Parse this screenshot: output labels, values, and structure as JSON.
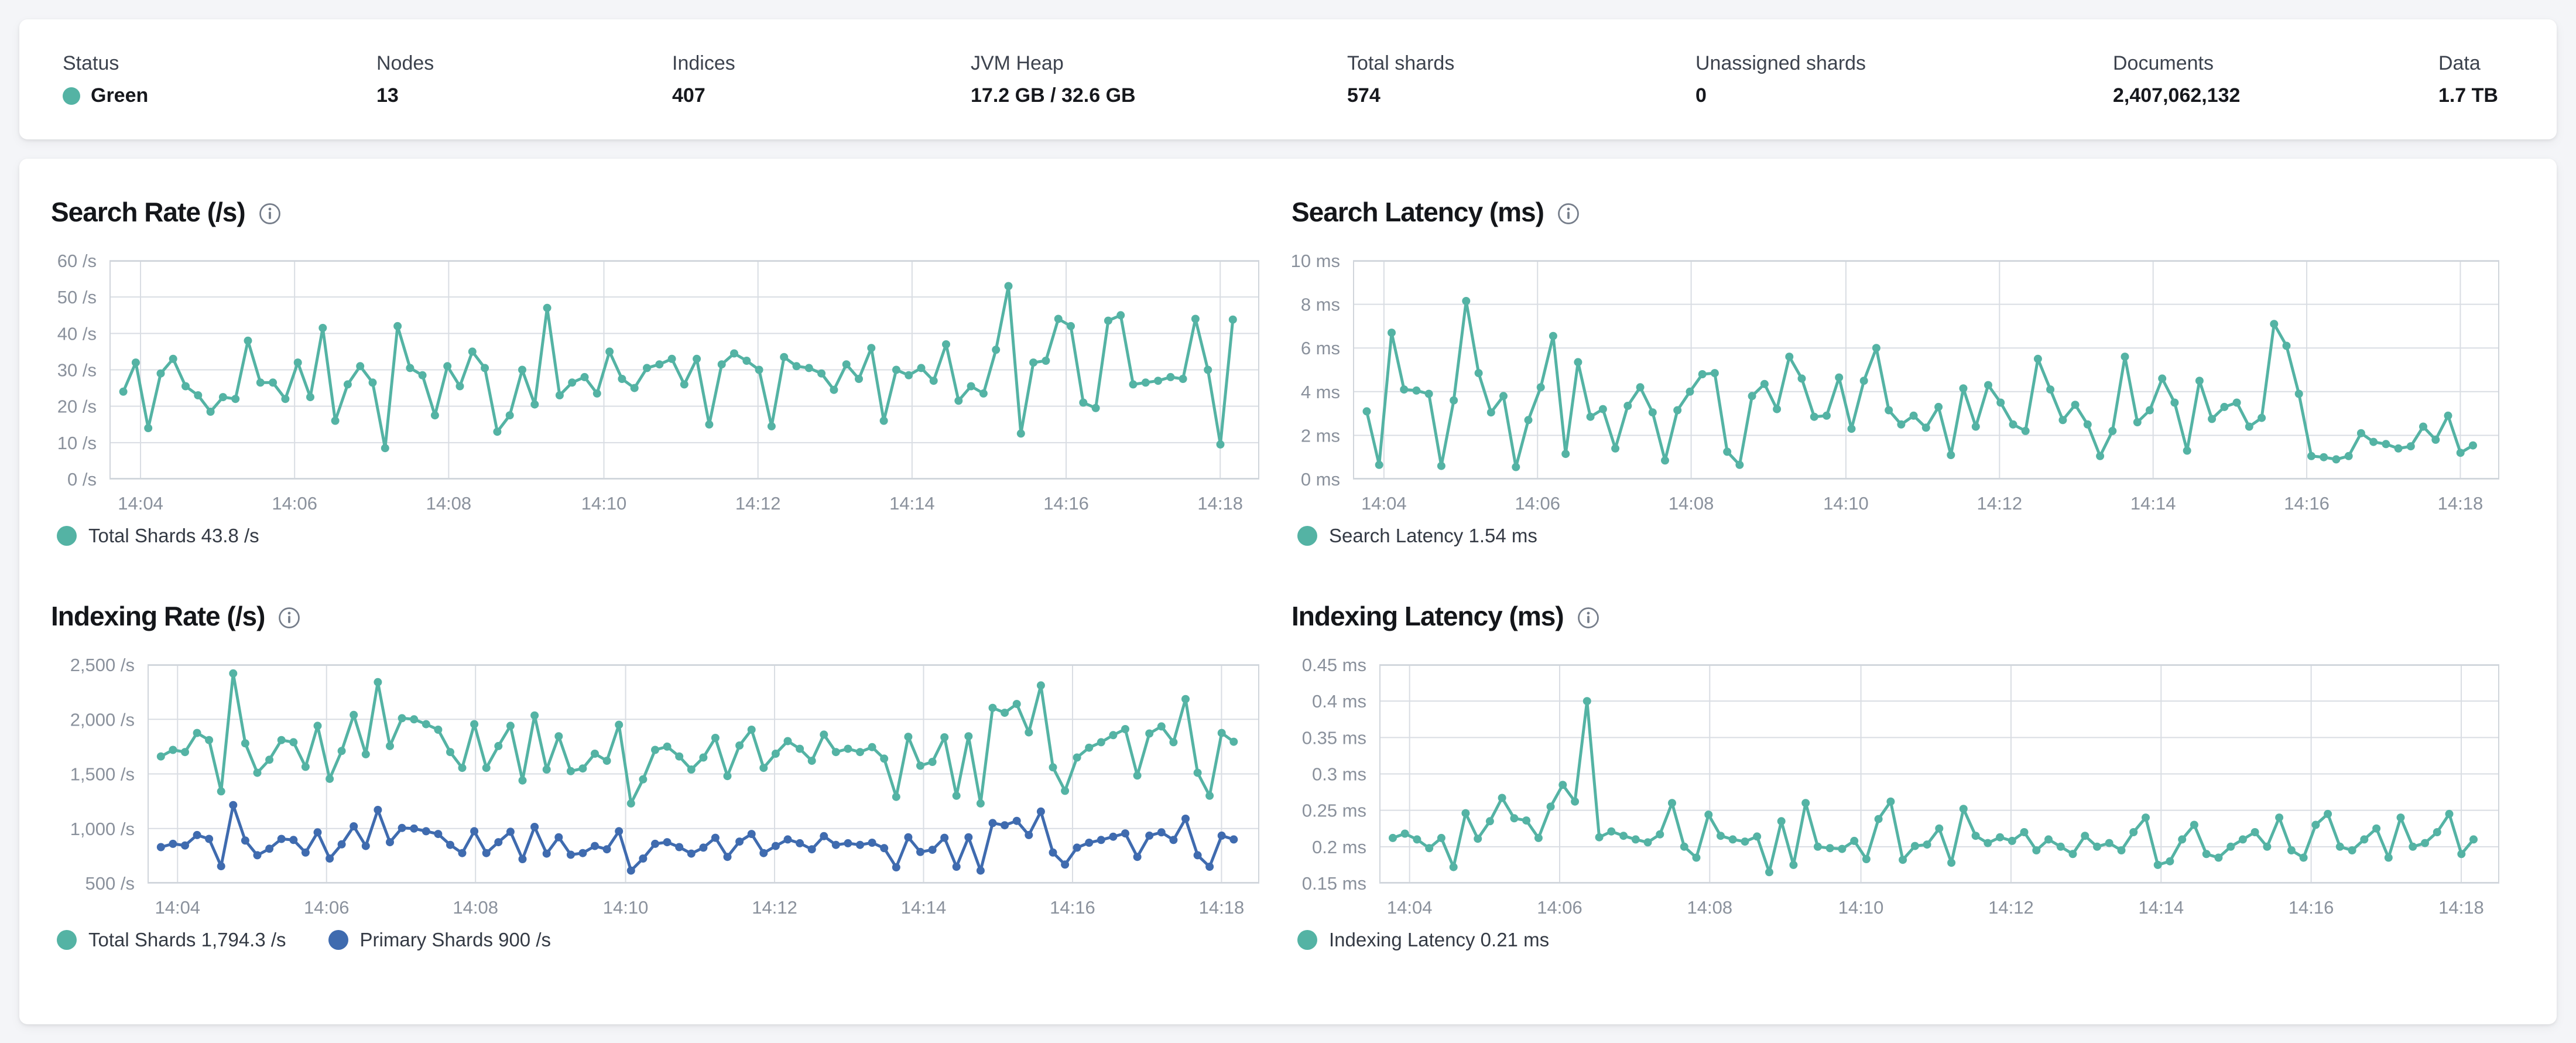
{
  "header": {
    "stats": [
      {
        "label": "Status",
        "value": "Green"
      },
      {
        "label": "Nodes",
        "value": "13"
      },
      {
        "label": "Indices",
        "value": "407"
      },
      {
        "label": "JVM Heap",
        "value": "17.2 GB / 32.6 GB"
      },
      {
        "label": "Total shards",
        "value": "574"
      },
      {
        "label": "Unassigned shards",
        "value": "0"
      },
      {
        "label": "Documents",
        "value": "2,407,062,132"
      },
      {
        "label": "Data",
        "value": "1.7 TB"
      }
    ],
    "status_color": "#54B3A4"
  },
  "colors": {
    "teal": "#54B3A4",
    "blue": "#3F6BAF",
    "grid": "#d9dde3",
    "axis_text": "#8a919c"
  },
  "chart_data": [
    {
      "type": "line",
      "title": "Search Rate (/s)",
      "ylim": [
        0,
        60
      ],
      "yticks": [
        {
          "label": "60 /s",
          "v": 60
        },
        {
          "label": "50 /s",
          "v": 50
        },
        {
          "label": "40 /s",
          "v": 40
        },
        {
          "label": "30 /s",
          "v": 30
        },
        {
          "label": "20 /s",
          "v": 20
        },
        {
          "label": "10 /s",
          "v": 10
        },
        {
          "label": "0 /s",
          "v": 0
        }
      ],
      "xticks": [
        {
          "label": "14:04",
          "f": 0.027
        },
        {
          "label": "14:06",
          "f": 0.161
        },
        {
          "label": "14:08",
          "f": 0.295
        },
        {
          "label": "14:10",
          "f": 0.43
        },
        {
          "label": "14:12",
          "f": 0.564
        },
        {
          "label": "14:14",
          "f": 0.698
        },
        {
          "label": "14:16",
          "f": 0.832
        },
        {
          "label": "14:18",
          "f": 0.966
        }
      ],
      "f_start": 0.012,
      "f_end": 0.977,
      "legend": [
        {
          "label": "Total Shards 43.8 /s",
          "color": "#54B3A4"
        }
      ],
      "series": [
        {
          "name": "Total Shards",
          "color": "#54B3A4",
          "values": [
            24,
            32,
            14,
            29,
            33,
            25.5,
            23,
            18.5,
            22.5,
            22,
            38,
            26.5,
            26.5,
            22,
            32,
            22.5,
            41.5,
            16,
            26,
            31,
            26.5,
            8.5,
            42,
            30.5,
            28.5,
            17.5,
            31,
            25.5,
            35,
            30.5,
            13,
            17.5,
            30,
            20.5,
            47,
            23,
            26.5,
            28,
            23.5,
            35,
            27.5,
            25,
            30.5,
            31.5,
            33,
            26,
            33,
            15,
            31.5,
            34.5,
            32.5,
            30,
            14.5,
            33.5,
            31,
            30.5,
            29,
            24.5,
            31.5,
            27.5,
            36,
            16,
            30,
            28.5,
            30.5,
            27,
            37,
            21.5,
            25.5,
            23.5,
            35.5,
            53,
            12.5,
            32,
            32.5,
            44,
            42,
            21,
            19.5,
            43.5,
            45,
            26,
            26.5,
            27,
            28,
            27.5,
            44,
            30,
            9.5,
            43.8
          ]
        }
      ]
    },
    {
      "type": "line",
      "title": "Search Latency (ms)",
      "ylim": [
        0,
        10
      ],
      "yticks": [
        {
          "label": "10 ms",
          "v": 10
        },
        {
          "label": "8 ms",
          "v": 8
        },
        {
          "label": "6 ms",
          "v": 6
        },
        {
          "label": "4 ms",
          "v": 4
        },
        {
          "label": "2 ms",
          "v": 2
        },
        {
          "label": "0 ms",
          "v": 0
        }
      ],
      "xticks": [
        {
          "label": "14:04",
          "f": 0.027
        },
        {
          "label": "14:06",
          "f": 0.161
        },
        {
          "label": "14:08",
          "f": 0.295
        },
        {
          "label": "14:10",
          "f": 0.43
        },
        {
          "label": "14:12",
          "f": 0.564
        },
        {
          "label": "14:14",
          "f": 0.698
        },
        {
          "label": "14:16",
          "f": 0.832
        },
        {
          "label": "14:18",
          "f": 0.966
        }
      ],
      "f_start": 0.012,
      "f_end": 0.977,
      "legend": [
        {
          "label": "Search Latency 1.54 ms",
          "color": "#54B3A4"
        }
      ],
      "series": [
        {
          "name": "Search Latency",
          "color": "#54B3A4",
          "values": [
            3.1,
            0.65,
            6.7,
            4.1,
            4.05,
            3.9,
            0.6,
            3.6,
            8.15,
            4.85,
            3.05,
            3.8,
            0.55,
            2.7,
            4.2,
            6.55,
            1.15,
            5.35,
            2.85,
            3.2,
            1.4,
            3.35,
            4.2,
            3.05,
            0.85,
            3.15,
            4.0,
            4.8,
            4.85,
            1.25,
            0.65,
            3.8,
            4.35,
            3.2,
            5.6,
            4.6,
            2.85,
            2.9,
            4.65,
            2.3,
            4.5,
            6.0,
            3.15,
            2.5,
            2.9,
            2.35,
            3.3,
            1.1,
            4.15,
            2.4,
            4.3,
            3.5,
            2.5,
            2.2,
            5.5,
            4.1,
            2.7,
            3.4,
            2.5,
            1.05,
            2.2,
            5.6,
            2.6,
            3.15,
            4.6,
            3.5,
            1.3,
            4.5,
            2.75,
            3.3,
            3.5,
            2.4,
            2.8,
            7.1,
            6.1,
            3.9,
            1.05,
            1.0,
            0.9,
            1.05,
            2.1,
            1.7,
            1.6,
            1.4,
            1.5,
            2.4,
            1.8,
            2.9,
            1.2,
            1.54
          ]
        }
      ]
    },
    {
      "type": "line",
      "title": "Indexing Rate (/s)",
      "ylim": [
        500,
        2500
      ],
      "yticks": [
        {
          "label": "2,500 /s",
          "v": 2500
        },
        {
          "label": "2,000 /s",
          "v": 2000
        },
        {
          "label": "1,500 /s",
          "v": 1500
        },
        {
          "label": "1,000 /s",
          "v": 1000
        },
        {
          "label": "500 /s",
          "v": 500
        }
      ],
      "xticks": [
        {
          "label": "14:04",
          "f": 0.027
        },
        {
          "label": "14:06",
          "f": 0.161
        },
        {
          "label": "14:08",
          "f": 0.295
        },
        {
          "label": "14:10",
          "f": 0.43
        },
        {
          "label": "14:12",
          "f": 0.564
        },
        {
          "label": "14:14",
          "f": 0.698
        },
        {
          "label": "14:16",
          "f": 0.832
        },
        {
          "label": "14:18",
          "f": 0.966
        }
      ],
      "f_start": 0.012,
      "f_end": 0.977,
      "legend": [
        {
          "label": "Total Shards 1,794.3 /s",
          "color": "#54B3A4"
        },
        {
          "label": "Primary Shards 900 /s",
          "color": "#3F6BAF"
        }
      ],
      "series": [
        {
          "name": "Total Shards",
          "color": "#54B3A4",
          "values": [
            1660,
            1720,
            1700,
            1875,
            1810,
            1340,
            2420,
            1780,
            1510,
            1630,
            1810,
            1790,
            1565,
            1940,
            1455,
            1710,
            2040,
            1680,
            2340,
            1755,
            2010,
            2000,
            1955,
            1905,
            1700,
            1555,
            1955,
            1555,
            1755,
            1940,
            1440,
            2035,
            1540,
            1845,
            1525,
            1550,
            1685,
            1620,
            1950,
            1230,
            1450,
            1720,
            1750,
            1660,
            1540,
            1650,
            1830,
            1480,
            1760,
            1905,
            1555,
            1685,
            1800,
            1730,
            1620,
            1860,
            1700,
            1730,
            1700,
            1745,
            1640,
            1290,
            1840,
            1575,
            1610,
            1835,
            1300,
            1845,
            1230,
            2105,
            2060,
            2140,
            1880,
            2310,
            1560,
            1345,
            1650,
            1740,
            1790,
            1855,
            1910,
            1485,
            1870,
            1935,
            1790,
            2185,
            1510,
            1300,
            1875,
            1794.3
          ]
        },
        {
          "name": "Primary Shards",
          "color": "#3F6BAF",
          "values": [
            830,
            860,
            845,
            940,
            905,
            655,
            1215,
            890,
            755,
            815,
            905,
            895,
            780,
            965,
            725,
            855,
            1020,
            840,
            1170,
            875,
            1005,
            1000,
            975,
            950,
            850,
            775,
            975,
            775,
            875,
            970,
            720,
            1015,
            770,
            920,
            760,
            775,
            840,
            810,
            975,
            615,
            725,
            860,
            875,
            830,
            770,
            825,
            915,
            740,
            880,
            950,
            775,
            840,
            900,
            865,
            810,
            930,
            850,
            865,
            850,
            870,
            820,
            645,
            920,
            785,
            805,
            915,
            650,
            920,
            615,
            1050,
            1030,
            1070,
            940,
            1155,
            780,
            670,
            825,
            870,
            895,
            925,
            955,
            740,
            935,
            965,
            895,
            1090,
            755,
            650,
            935,
            900
          ]
        }
      ]
    },
    {
      "type": "line",
      "title": "Indexing Latency (ms)",
      "ylim": [
        0.15,
        0.45
      ],
      "yticks": [
        {
          "label": "0.45 ms",
          "v": 0.45
        },
        {
          "label": "0.4 ms",
          "v": 0.4
        },
        {
          "label": "0.35 ms",
          "v": 0.35
        },
        {
          "label": "0.3 ms",
          "v": 0.3
        },
        {
          "label": "0.25 ms",
          "v": 0.25
        },
        {
          "label": "0.2 ms",
          "v": 0.2
        },
        {
          "label": "0.15 ms",
          "v": 0.15
        }
      ],
      "xticks": [
        {
          "label": "14:04",
          "f": 0.027
        },
        {
          "label": "14:06",
          "f": 0.161
        },
        {
          "label": "14:08",
          "f": 0.295
        },
        {
          "label": "14:10",
          "f": 0.43
        },
        {
          "label": "14:12",
          "f": 0.564
        },
        {
          "label": "14:14",
          "f": 0.698
        },
        {
          "label": "14:16",
          "f": 0.832
        },
        {
          "label": "14:18",
          "f": 0.966
        }
      ],
      "f_start": 0.012,
      "f_end": 0.977,
      "legend": [
        {
          "label": "Indexing Latency 0.21 ms",
          "color": "#54B3A4"
        }
      ],
      "series": [
        {
          "name": "Indexing Latency",
          "color": "#54B3A4",
          "values": [
            0.212,
            0.218,
            0.21,
            0.198,
            0.212,
            0.172,
            0.246,
            0.211,
            0.235,
            0.267,
            0.239,
            0.236,
            0.212,
            0.255,
            0.285,
            0.262,
            0.4,
            0.213,
            0.221,
            0.215,
            0.21,
            0.206,
            0.217,
            0.26,
            0.2,
            0.185,
            0.244,
            0.215,
            0.21,
            0.207,
            0.214,
            0.165,
            0.235,
            0.175,
            0.26,
            0.2,
            0.198,
            0.197,
            0.208,
            0.183,
            0.238,
            0.262,
            0.182,
            0.201,
            0.203,
            0.225,
            0.178,
            0.252,
            0.215,
            0.205,
            0.213,
            0.208,
            0.22,
            0.195,
            0.21,
            0.2,
            0.19,
            0.215,
            0.2,
            0.205,
            0.195,
            0.22,
            0.24,
            0.175,
            0.18,
            0.21,
            0.23,
            0.19,
            0.185,
            0.2,
            0.21,
            0.22,
            0.2,
            0.24,
            0.195,
            0.185,
            0.23,
            0.245,
            0.2,
            0.195,
            0.21,
            0.225,
            0.185,
            0.24,
            0.2,
            0.205,
            0.22,
            0.245,
            0.19,
            0.21
          ]
        }
      ]
    }
  ]
}
